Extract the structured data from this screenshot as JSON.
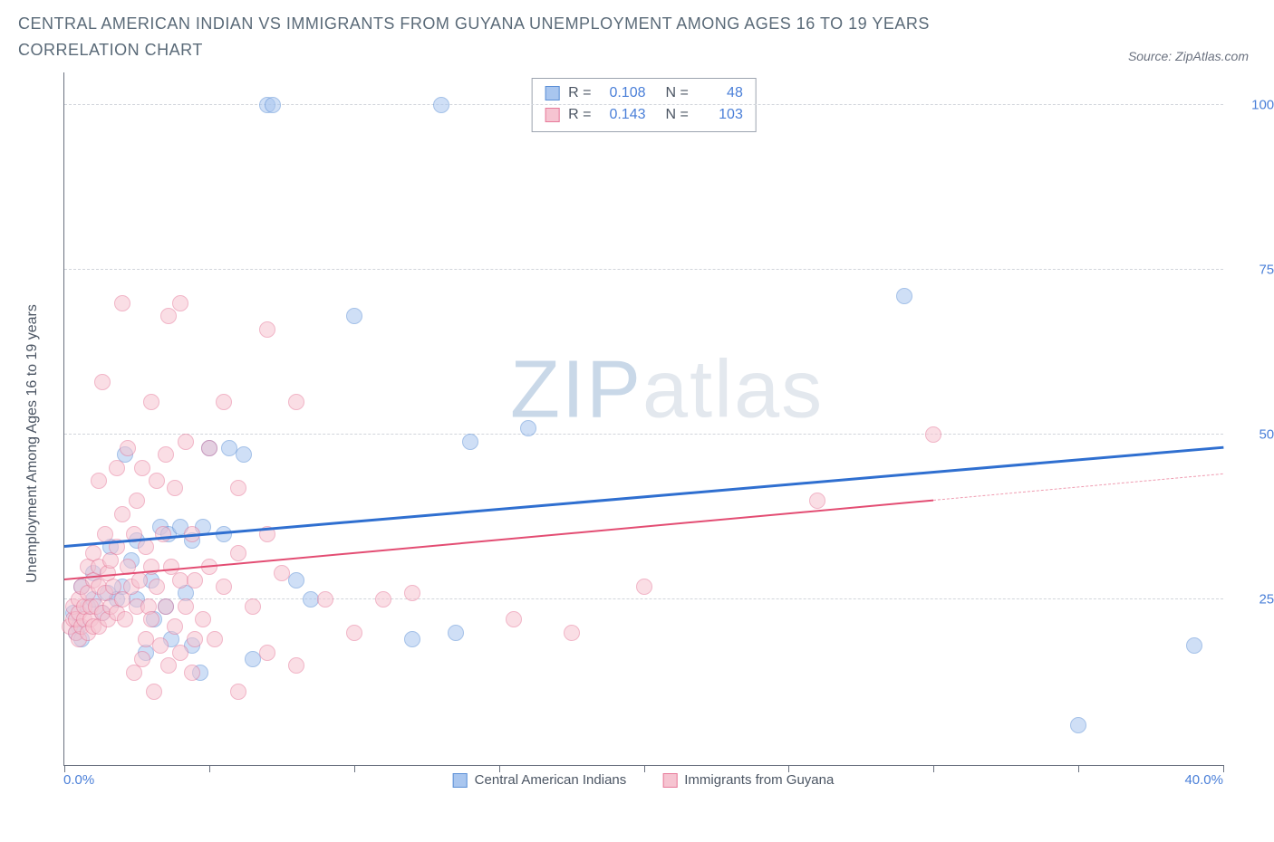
{
  "title": "CENTRAL AMERICAN INDIAN VS IMMIGRANTS FROM GUYANA UNEMPLOYMENT AMONG AGES 16 TO 19 YEARS CORRELATION CHART",
  "source": "Source: ZipAtlas.com",
  "y_axis_title": "Unemployment Among Ages 16 to 19 years",
  "watermark_a": "ZIP",
  "watermark_b": "atlas",
  "chart": {
    "type": "scatter",
    "xlim": [
      0,
      40
    ],
    "ylim": [
      0,
      105
    ],
    "x_ticks": [
      0,
      5,
      10,
      15,
      20,
      25,
      30,
      35,
      40
    ],
    "x_tick_labels": {
      "0": "0.0%",
      "40": "40.0%"
    },
    "y_gridlines": [
      25,
      50,
      75,
      100
    ],
    "y_tick_labels": {
      "25": "25.0%",
      "50": "50.0%",
      "75": "75.0%",
      "100": "100.0%"
    },
    "grid_color": "#d1d5db",
    "axis_color": "#6b7280",
    "tick_label_color": "#4a7fd8",
    "point_radius": 9,
    "point_opacity": 0.55,
    "series": [
      {
        "id": "blue",
        "label": "Central American Indians",
        "fill": "#a9c6ef",
        "stroke": "#5b8fd6",
        "r_label": "R =",
        "n_label": "N =",
        "r_value": "0.108",
        "n_value": "48",
        "trend": {
          "x1": 0,
          "y1": 33,
          "x2": 40,
          "y2": 48,
          "color": "#2f6fd0",
          "width": 2.5,
          "dash_from_x": null
        },
        "points": [
          [
            0.3,
            23
          ],
          [
            0.5,
            21
          ],
          [
            0.6,
            27
          ],
          [
            0.8,
            24
          ],
          [
            0.4,
            20
          ],
          [
            0.6,
            19
          ],
          [
            1.0,
            29
          ],
          [
            1.0,
            25
          ],
          [
            1.3,
            23
          ],
          [
            1.5,
            26
          ],
          [
            1.6,
            33
          ],
          [
            1.8,
            25
          ],
          [
            2.0,
            27
          ],
          [
            2.1,
            47
          ],
          [
            2.3,
            31
          ],
          [
            2.5,
            25
          ],
          [
            2.5,
            34
          ],
          [
            2.8,
            17
          ],
          [
            3.0,
            28
          ],
          [
            3.1,
            22
          ],
          [
            3.3,
            36
          ],
          [
            3.5,
            24
          ],
          [
            3.6,
            35
          ],
          [
            3.7,
            19
          ],
          [
            4.0,
            36
          ],
          [
            4.2,
            26
          ],
          [
            4.4,
            18
          ],
          [
            4.4,
            34
          ],
          [
            4.7,
            14
          ],
          [
            4.8,
            36
          ],
          [
            5.0,
            48
          ],
          [
            5.5,
            35
          ],
          [
            5.7,
            48
          ],
          [
            6.2,
            47
          ],
          [
            6.5,
            16
          ],
          [
            7.0,
            100
          ],
          [
            7.2,
            100
          ],
          [
            8.5,
            25
          ],
          [
            10.0,
            68
          ],
          [
            12.0,
            19
          ],
          [
            13.0,
            100
          ],
          [
            13.5,
            20
          ],
          [
            14.0,
            49
          ],
          [
            16.0,
            51
          ],
          [
            8.0,
            28
          ],
          [
            29.0,
            71
          ],
          [
            35.0,
            6
          ],
          [
            39.0,
            18
          ]
        ]
      },
      {
        "id": "pink",
        "label": "Immigrants from Guyana",
        "fill": "#f6c4d1",
        "stroke": "#e77a9a",
        "r_label": "R =",
        "n_label": "N =",
        "r_value": "0.143",
        "n_value": "103",
        "trend": {
          "x1": 0,
          "y1": 28,
          "x2": 40,
          "y2": 44,
          "color": "#e34d73",
          "width": 2,
          "dash_from_x": 30
        },
        "points": [
          [
            0.2,
            21
          ],
          [
            0.3,
            22
          ],
          [
            0.3,
            24
          ],
          [
            0.4,
            20
          ],
          [
            0.4,
            22
          ],
          [
            0.5,
            19
          ],
          [
            0.5,
            23
          ],
          [
            0.5,
            25
          ],
          [
            0.6,
            21
          ],
          [
            0.6,
            27
          ],
          [
            0.7,
            22
          ],
          [
            0.7,
            24
          ],
          [
            0.8,
            20
          ],
          [
            0.8,
            26
          ],
          [
            0.8,
            30
          ],
          [
            0.9,
            22
          ],
          [
            0.9,
            24
          ],
          [
            1.0,
            21
          ],
          [
            1.0,
            28
          ],
          [
            1.0,
            32
          ],
          [
            1.1,
            24
          ],
          [
            1.2,
            21
          ],
          [
            1.2,
            27
          ],
          [
            1.2,
            43
          ],
          [
            1.3,
            58
          ],
          [
            1.2,
            30
          ],
          [
            1.3,
            23
          ],
          [
            1.4,
            26
          ],
          [
            1.4,
            35
          ],
          [
            1.5,
            22
          ],
          [
            1.5,
            29
          ],
          [
            1.6,
            24
          ],
          [
            1.6,
            31
          ],
          [
            1.7,
            27
          ],
          [
            1.8,
            23
          ],
          [
            1.8,
            33
          ],
          [
            1.8,
            45
          ],
          [
            2.0,
            25
          ],
          [
            2.0,
            38
          ],
          [
            2.0,
            70
          ],
          [
            2.1,
            22
          ],
          [
            2.2,
            30
          ],
          [
            2.2,
            48
          ],
          [
            2.3,
            27
          ],
          [
            2.4,
            14
          ],
          [
            2.4,
            35
          ],
          [
            2.5,
            24
          ],
          [
            2.5,
            40
          ],
          [
            2.6,
            28
          ],
          [
            2.7,
            16
          ],
          [
            2.7,
            45
          ],
          [
            2.8,
            19
          ],
          [
            2.8,
            33
          ],
          [
            2.9,
            24
          ],
          [
            3.0,
            22
          ],
          [
            3.0,
            30
          ],
          [
            3.0,
            55
          ],
          [
            3.1,
            11
          ],
          [
            3.2,
            27
          ],
          [
            3.2,
            43
          ],
          [
            3.3,
            18
          ],
          [
            3.4,
            35
          ],
          [
            3.5,
            24
          ],
          [
            3.5,
            47
          ],
          [
            3.6,
            15
          ],
          [
            3.6,
            68
          ],
          [
            3.7,
            30
          ],
          [
            3.8,
            21
          ],
          [
            3.8,
            42
          ],
          [
            4.0,
            17
          ],
          [
            4.0,
            28
          ],
          [
            4.0,
            70
          ],
          [
            4.2,
            24
          ],
          [
            4.2,
            49
          ],
          [
            4.4,
            14
          ],
          [
            4.4,
            35
          ],
          [
            4.5,
            19
          ],
          [
            4.5,
            28
          ],
          [
            4.8,
            22
          ],
          [
            5.0,
            30
          ],
          [
            5.0,
            48
          ],
          [
            5.2,
            19
          ],
          [
            5.5,
            27
          ],
          [
            5.5,
            55
          ],
          [
            6.0,
            11
          ],
          [
            6.0,
            32
          ],
          [
            6.0,
            42
          ],
          [
            6.5,
            24
          ],
          [
            7.0,
            17
          ],
          [
            7.0,
            35
          ],
          [
            7.0,
            66
          ],
          [
            7.5,
            29
          ],
          [
            8.0,
            15
          ],
          [
            8.0,
            55
          ],
          [
            9.0,
            25
          ],
          [
            10.0,
            20
          ],
          [
            11.0,
            25
          ],
          [
            12.0,
            26
          ],
          [
            15.5,
            22
          ],
          [
            17.5,
            20
          ],
          [
            20.0,
            27
          ],
          [
            26.0,
            40
          ],
          [
            30.0,
            50
          ]
        ]
      }
    ]
  }
}
